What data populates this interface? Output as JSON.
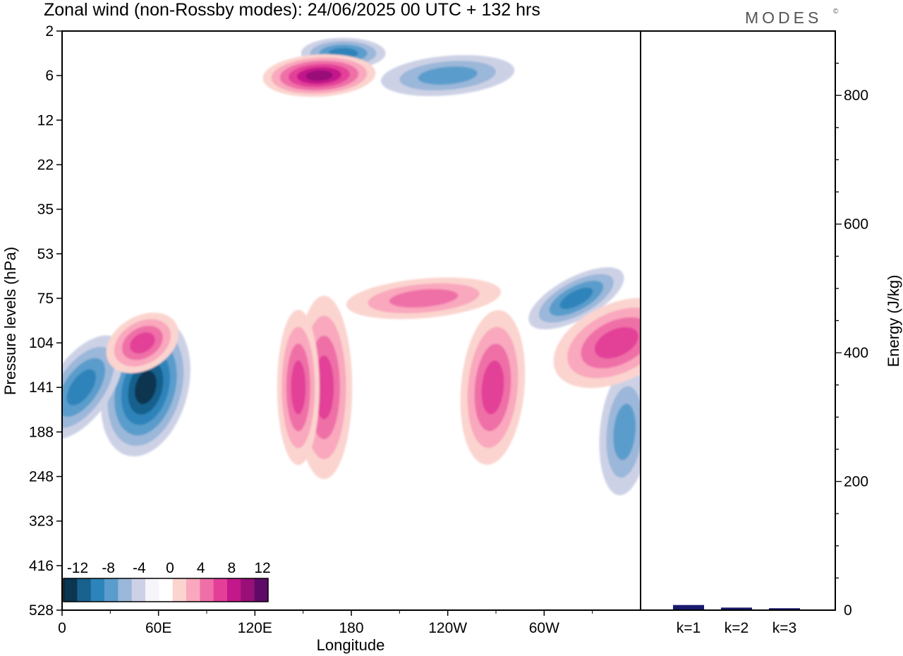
{
  "header": {
    "title": "Zonal wind (non-Rossby modes):  24/06/2025  00 UTC  + 132 hrs",
    "logo": "MODES",
    "logo_mark": "©"
  },
  "chart_data": [
    {
      "type": "heatmap",
      "title": "Zonal wind (non-Rossby modes):  24/06/2025  00 UTC  + 132 hrs",
      "xlabel": "Longitude",
      "ylabel": "Pressure levels (hPa)",
      "x_ticks": [
        "0",
        "60E",
        "120E",
        "180",
        "120W",
        "60W"
      ],
      "x_tick_values": [
        0,
        60,
        120,
        180,
        240,
        300
      ],
      "xlim": [
        0,
        360
      ],
      "y_ticks": [
        "2",
        "6",
        "12",
        "22",
        "35",
        "53",
        "75",
        "104",
        "141",
        "188",
        "248",
        "323",
        "416",
        "528"
      ],
      "colorbar": {
        "labels": [
          "-12",
          "-8",
          "-4",
          "0",
          "4",
          "8",
          "12"
        ],
        "levels": [
          -14,
          -12,
          -10,
          -8,
          -6,
          -4,
          -2,
          -1,
          1,
          2,
          4,
          6,
          8,
          10,
          12,
          14
        ],
        "colors": [
          "#0b3550",
          "#19618e",
          "#2d84ba",
          "#5a9dcc",
          "#9bb7d9",
          "#cdd1e6",
          "#f5f5fa",
          "#ffffff",
          "#fbd4cf",
          "#f9a8bd",
          "#ef6fa7",
          "#e33f98",
          "#c2188a",
          "#990f78",
          "#5e0b68"
        ]
      },
      "features": [
        {
          "kind": "negative",
          "lon": 52,
          "level": "141",
          "peak": -14
        },
        {
          "kind": "negative",
          "lon": 12,
          "level": "141",
          "peak": -8
        },
        {
          "kind": "negative",
          "lon": 320,
          "level": "75",
          "peak": -8
        },
        {
          "kind": "negative",
          "lon": 350,
          "level": "188",
          "peak": -6
        },
        {
          "kind": "negative",
          "lon": 175,
          "level": "4",
          "peak": -8
        },
        {
          "kind": "negative",
          "lon": 240,
          "level": "6",
          "peak": -6
        },
        {
          "kind": "positive",
          "lon": 50,
          "level": "104",
          "peak": 8
        },
        {
          "kind": "positive",
          "lon": 163,
          "level": "141",
          "peak": 8
        },
        {
          "kind": "positive",
          "lon": 147,
          "level": "141",
          "peak": 8
        },
        {
          "kind": "positive",
          "lon": 268,
          "level": "141",
          "peak": 8
        },
        {
          "kind": "positive",
          "lon": 345,
          "level": "104",
          "peak": 8
        },
        {
          "kind": "positive",
          "lon": 160,
          "level": "6",
          "peak": 12
        },
        {
          "kind": "positive",
          "lon": 225,
          "level": "75",
          "peak": 6
        }
      ]
    },
    {
      "type": "bar",
      "categories": [
        "k=1",
        "k=2",
        "k=3"
      ],
      "values": [
        8,
        4,
        3
      ],
      "ylabel": "Energy (J/kg)",
      "ylim": [
        0,
        900
      ],
      "y_ticks": [
        "200",
        "400",
        "600",
        "800"
      ],
      "y_tick_values": [
        200,
        400,
        600,
        800
      ],
      "bar_color": "#1a1a6e"
    }
  ]
}
